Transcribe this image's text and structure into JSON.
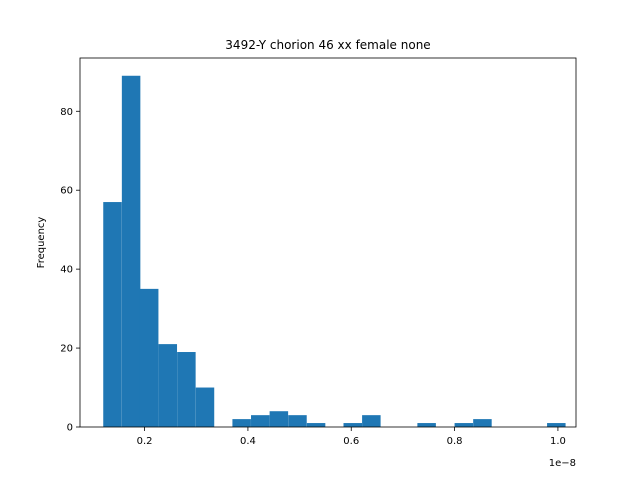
{
  "chart_data": {
    "type": "bar",
    "title": "3492-Y chorion 46 xx female none",
    "xlabel": "",
    "ylabel": "Frequency",
    "x_offset_label": "1e−8",
    "xlim": [
      0.075,
      1.035
    ],
    "ylim": [
      0,
      93.5
    ],
    "x_ticks": [
      0.2,
      0.4,
      0.6,
      0.8,
      1.0
    ],
    "x_tick_labels": [
      "0.2",
      "0.4",
      "0.6",
      "0.8",
      "1.0"
    ],
    "y_ticks": [
      0,
      20,
      40,
      60,
      80
    ],
    "y_tick_labels": [
      "0",
      "20",
      "40",
      "60",
      "80"
    ],
    "grid": false,
    "bar_color": "#1f77b4",
    "bin_width": 0.0358,
    "bins": [
      {
        "start": 0.12,
        "count": 57
      },
      {
        "start": 0.156,
        "count": 89
      },
      {
        "start": 0.191,
        "count": 35
      },
      {
        "start": 0.227,
        "count": 21
      },
      {
        "start": 0.263,
        "count": 19
      },
      {
        "start": 0.299,
        "count": 10
      },
      {
        "start": 0.335,
        "count": 0
      },
      {
        "start": 0.37,
        "count": 2
      },
      {
        "start": 0.406,
        "count": 3
      },
      {
        "start": 0.442,
        "count": 4
      },
      {
        "start": 0.478,
        "count": 3
      },
      {
        "start": 0.514,
        "count": 1
      },
      {
        "start": 0.549,
        "count": 0
      },
      {
        "start": 0.585,
        "count": 1
      },
      {
        "start": 0.621,
        "count": 3
      },
      {
        "start": 0.657,
        "count": 0
      },
      {
        "start": 0.693,
        "count": 0
      },
      {
        "start": 0.728,
        "count": 1
      },
      {
        "start": 0.764,
        "count": 0
      },
      {
        "start": 0.8,
        "count": 1
      },
      {
        "start": 0.836,
        "count": 2
      },
      {
        "start": 0.872,
        "count": 0
      },
      {
        "start": 0.907,
        "count": 0
      },
      {
        "start": 0.943,
        "count": 0
      },
      {
        "start": 0.979,
        "count": 1
      }
    ]
  }
}
